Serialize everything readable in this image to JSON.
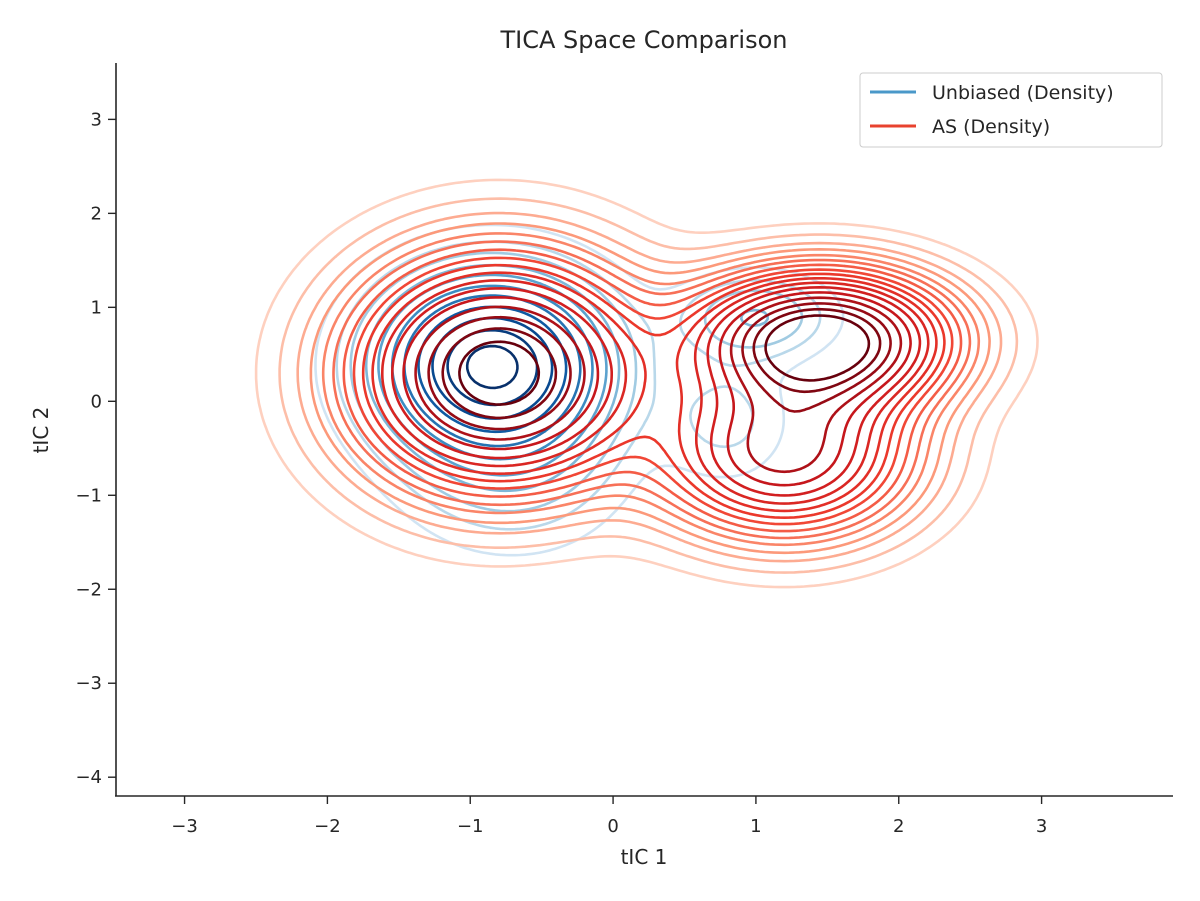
{
  "chart_data": {
    "type": "contour",
    "title": "TICA Space Comparison",
    "xlabel": "tIC 1",
    "ylabel": "tIC 2",
    "xlim": [
      -3.48,
      3.92
    ],
    "ylim": [
      -4.2,
      3.6
    ],
    "xticks": [
      -3,
      -2,
      -1,
      0,
      1,
      2,
      3
    ],
    "yticks": [
      -4,
      -3,
      -2,
      -1,
      0,
      1,
      2,
      3
    ],
    "xtick_labels": [
      "−3",
      "−2",
      "−1",
      "0",
      "1",
      "2",
      "3"
    ],
    "ytick_labels": [
      "−4",
      "−3",
      "−2",
      "−1",
      "0",
      "1",
      "2",
      "3"
    ],
    "grid": false,
    "legend_position": "top-right",
    "series": [
      {
        "name": "Unbiased (Density)",
        "legend_color": "#4a98c9",
        "colormap": "Blues",
        "components": [
          {
            "weight": 0.78,
            "mx": -0.85,
            "my": 0.4,
            "sx": 0.5,
            "sy": 0.6
          },
          {
            "weight": 0.12,
            "mx": -0.7,
            "my": -0.7,
            "sx": 0.5,
            "sy": 0.6
          },
          {
            "weight": 0.06,
            "mx": 1.0,
            "my": 0.9,
            "sx": 0.35,
            "sy": 0.3
          },
          {
            "weight": 0.04,
            "mx": 0.8,
            "my": -0.2,
            "sx": 0.3,
            "sy": 0.45
          }
        ],
        "contour_levels": [
          0.02,
          0.04,
          0.06,
          0.09,
          0.12,
          0.16,
          0.2,
          0.25,
          0.3,
          0.35,
          0.4
        ]
      },
      {
        "name": "AS (Density)",
        "legend_color": "#e8422e",
        "colormap": "Reds",
        "components": [
          {
            "weight": 0.5,
            "mx": -0.8,
            "my": 0.3,
            "sx": 0.62,
            "sy": 0.75
          },
          {
            "weight": 0.28,
            "mx": 1.45,
            "my": 0.65,
            "sx": 0.55,
            "sy": 0.45
          },
          {
            "weight": 0.22,
            "mx": 1.2,
            "my": -0.55,
            "sx": 0.55,
            "sy": 0.55
          }
        ],
        "contour_levels": [
          0.004,
          0.008,
          0.013,
          0.018,
          0.024,
          0.03,
          0.037,
          0.045,
          0.053,
          0.062,
          0.072,
          0.083,
          0.096,
          0.11,
          0.125,
          0.14,
          0.155
        ]
      }
    ]
  }
}
